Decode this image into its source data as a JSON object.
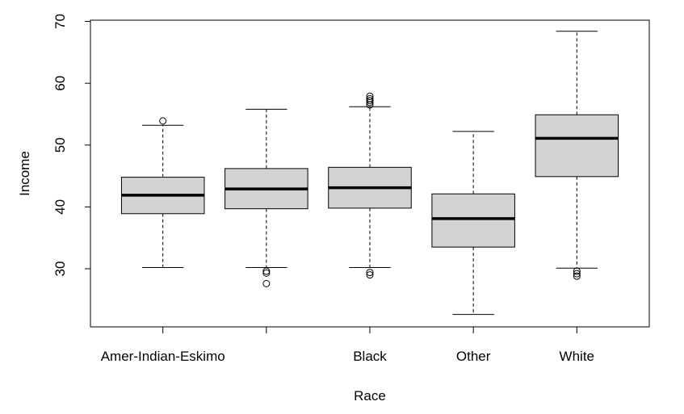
{
  "chart_data": {
    "type": "boxplot",
    "xlabel": "Race",
    "ylabel": "Income",
    "ylim": [
      20.6,
      70.2
    ],
    "y_ticks": [
      30,
      40,
      50,
      60,
      70
    ],
    "categories": [
      "Amer-Indian-Eskimo",
      "",
      "Black",
      "Other",
      "White"
    ],
    "box_fill": "#d3d3d3",
    "grid": false,
    "boxes": [
      {
        "category": "Amer-Indian-Eskimo",
        "whisker_low": 30.2,
        "q1": 38.9,
        "median": 41.9,
        "q3": 44.8,
        "whisker_high": 53.2,
        "outliers": [
          53.9
        ]
      },
      {
        "category": "",
        "whisker_low": 30.2,
        "q1": 39.7,
        "median": 42.9,
        "q3": 46.2,
        "whisker_high": 55.8,
        "outliers": [
          29.3,
          29.6,
          27.6
        ]
      },
      {
        "category": "Black",
        "whisker_low": 30.2,
        "q1": 39.8,
        "median": 43.1,
        "q3": 46.4,
        "whisker_high": 56.2,
        "outliers": [
          29.0,
          29.4,
          56.5,
          56.9,
          57.2,
          57.5,
          57.9
        ]
      },
      {
        "category": "Other",
        "whisker_low": 22.6,
        "q1": 33.5,
        "median": 38.1,
        "q3": 42.1,
        "whisker_high": 52.2,
        "outliers": []
      },
      {
        "category": "White",
        "whisker_low": 30.1,
        "q1": 44.9,
        "median": 51.1,
        "q3": 54.9,
        "whisker_high": 68.4,
        "outliers": [
          28.8,
          29.2,
          29.6
        ]
      }
    ]
  }
}
